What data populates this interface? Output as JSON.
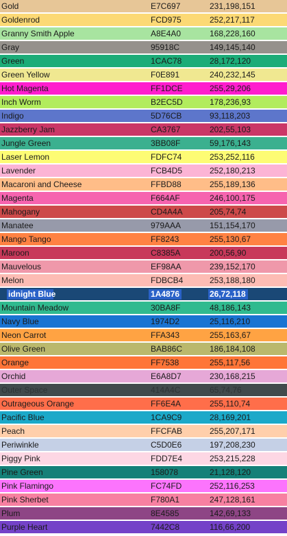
{
  "selected_index": 21,
  "rows": [
    {
      "name": "Gold",
      "hex": "E7C697",
      "rgb": "231,198,151",
      "bg": "#E7C697",
      "fg": "#1a1a1a"
    },
    {
      "name": "Goldenrod",
      "hex": "FCD975",
      "rgb": "252,217,117",
      "bg": "#FCD975",
      "fg": "#1a1a1a"
    },
    {
      "name": "Granny Smith Apple",
      "hex": "A8E4A0",
      "rgb": "168,228,160",
      "bg": "#A8E4A0",
      "fg": "#1a1a1a"
    },
    {
      "name": "Gray",
      "hex": "95918C",
      "rgb": "149,145,140",
      "bg": "#95918C",
      "fg": "#1a1a1a"
    },
    {
      "name": "Green",
      "hex": "1CAC78",
      "rgb": "28,172,120",
      "bg": "#1CAC78",
      "fg": "#1a1a1a"
    },
    {
      "name": "Green Yellow",
      "hex": "F0E891",
      "rgb": "240,232,145",
      "bg": "#F0E891",
      "fg": "#1a1a1a"
    },
    {
      "name": "Hot Magenta",
      "hex": "FF1DCE",
      "rgb": "255,29,206",
      "bg": "#FF1DCE",
      "fg": "#1a1a1a"
    },
    {
      "name": "Inch Worm",
      "hex": "B2EC5D",
      "rgb": "178,236,93",
      "bg": "#B2EC5D",
      "fg": "#1a1a1a"
    },
    {
      "name": "Indigo",
      "hex": "5D76CB",
      "rgb": "93,118,203",
      "bg": "#5D76CB",
      "fg": "#1a1a1a"
    },
    {
      "name": "Jazzberry Jam",
      "hex": "CA3767",
      "rgb": "202,55,103",
      "bg": "#CA3767",
      "fg": "#1a1a1a"
    },
    {
      "name": "Jungle Green",
      "hex": "3BB08F",
      "rgb": "59,176,143",
      "bg": "#3BB08F",
      "fg": "#1a1a1a"
    },
    {
      "name": "Laser Lemon",
      "hex": "FDFC74",
      "rgb": "253,252,116",
      "bg": "#FDFC74",
      "fg": "#1a1a1a"
    },
    {
      "name": "Lavender",
      "hex": "FCB4D5",
      "rgb": "252,180,213",
      "bg": "#FCB4D5",
      "fg": "#1a1a1a"
    },
    {
      "name": "Macaroni and Cheese",
      "hex": "FFBD88",
      "rgb": "255,189,136",
      "bg": "#FFBD88",
      "fg": "#1a1a1a"
    },
    {
      "name": "Magenta",
      "hex": "F664AF",
      "rgb": "246,100,175",
      "bg": "#F664AF",
      "fg": "#1a1a1a"
    },
    {
      "name": "Mahogany",
      "hex": "CD4A4A",
      "rgb": "205,74,74",
      "bg": "#CD4A4A",
      "fg": "#1a1a1a"
    },
    {
      "name": "Manatee",
      "hex": "979AAA",
      "rgb": "151,154,170",
      "bg": "#979AAA",
      "fg": "#1a1a1a"
    },
    {
      "name": "Mango Tango",
      "hex": "FF8243",
      "rgb": "255,130,67",
      "bg": "#FF8243",
      "fg": "#1a1a1a"
    },
    {
      "name": "Maroon",
      "hex": "C8385A",
      "rgb": "200,56,90",
      "bg": "#C8385A",
      "fg": "#1a1a1a"
    },
    {
      "name": "Mauvelous",
      "hex": "EF98AA",
      "rgb": "239,152,170",
      "bg": "#EF98AA",
      "fg": "#1a1a1a"
    },
    {
      "name": "Melon",
      "hex": "FDBCB4",
      "rgb": "253,188,180",
      "bg": "#FDBCB4",
      "fg": "#1a1a1a"
    },
    {
      "name": "idnight Blue",
      "hex": "1A4876",
      "rgb": "26,72,118",
      "bg": "#1A4876",
      "fg": "#ffffff"
    },
    {
      "name": "Mountain Meadow",
      "hex": "30BA8F",
      "rgb": "48,186,143",
      "bg": "#30BA8F",
      "fg": "#1a1a1a"
    },
    {
      "name": "Navy Blue",
      "hex": "1974D2",
      "rgb": "25,116,210",
      "bg": "#1974D2",
      "fg": "#1a1a1a"
    },
    {
      "name": "Neon Carrot",
      "hex": "FFA343",
      "rgb": "255,163,67",
      "bg": "#FFA343",
      "fg": "#1a1a1a"
    },
    {
      "name": "Olive Green",
      "hex": "BAB86C",
      "rgb": "186,184,108",
      "bg": "#BAB86C",
      "fg": "#1a1a1a"
    },
    {
      "name": "Orange",
      "hex": "FF7538",
      "rgb": "255,117,56",
      "bg": "#FF7538",
      "fg": "#1a1a1a"
    },
    {
      "name": "Orchid",
      "hex": "E6A8D7",
      "rgb": "230,168,215",
      "bg": "#E6A8D7",
      "fg": "#1a1a1a"
    },
    {
      "name": "Outer Space",
      "hex": "414A4C",
      "rgb": "65,74,76",
      "bg": "#414A4C",
      "fg": "#2e3436"
    },
    {
      "name": "Outrageous Orange",
      "hex": "FF6E4A",
      "rgb": "255,110,74",
      "bg": "#FF6E4A",
      "fg": "#1a1a1a"
    },
    {
      "name": "Pacific Blue",
      "hex": "1CA9C9",
      "rgb": "28,169,201",
      "bg": "#1CA9C9",
      "fg": "#1a1a1a"
    },
    {
      "name": "Peach",
      "hex": "FFCFAB",
      "rgb": "255,207,171",
      "bg": "#FFCFAB",
      "fg": "#1a1a1a"
    },
    {
      "name": "Periwinkle",
      "hex": "C5D0E6",
      "rgb": "197,208,230",
      "bg": "#C5D0E6",
      "fg": "#1a1a1a"
    },
    {
      "name": "Piggy Pink",
      "hex": "FDD7E4",
      "rgb": "253,215,228",
      "bg": "#FDD7E4",
      "fg": "#1a1a1a"
    },
    {
      "name": "Pine Green",
      "hex": "158078",
      "rgb": "21,128,120",
      "bg": "#158078",
      "fg": "#1a1a1a"
    },
    {
      "name": "Pink Flamingo",
      "hex": "FC74FD",
      "rgb": "252,116,253",
      "bg": "#FC74FD",
      "fg": "#1a1a1a"
    },
    {
      "name": "Pink Sherbet",
      "hex": "F780A1",
      "rgb": "247,128,161",
      "bg": "#F780A1",
      "fg": "#1a1a1a"
    },
    {
      "name": "Plum",
      "hex": "8E4585",
      "rgb": "142,69,133",
      "bg": "#8E4585",
      "fg": "#1a1a1a"
    },
    {
      "name": "Purple Heart",
      "hex": "7442C8",
      "rgb": "116,66,200",
      "bg": "#7442C8",
      "fg": "#1a1a1a"
    }
  ]
}
